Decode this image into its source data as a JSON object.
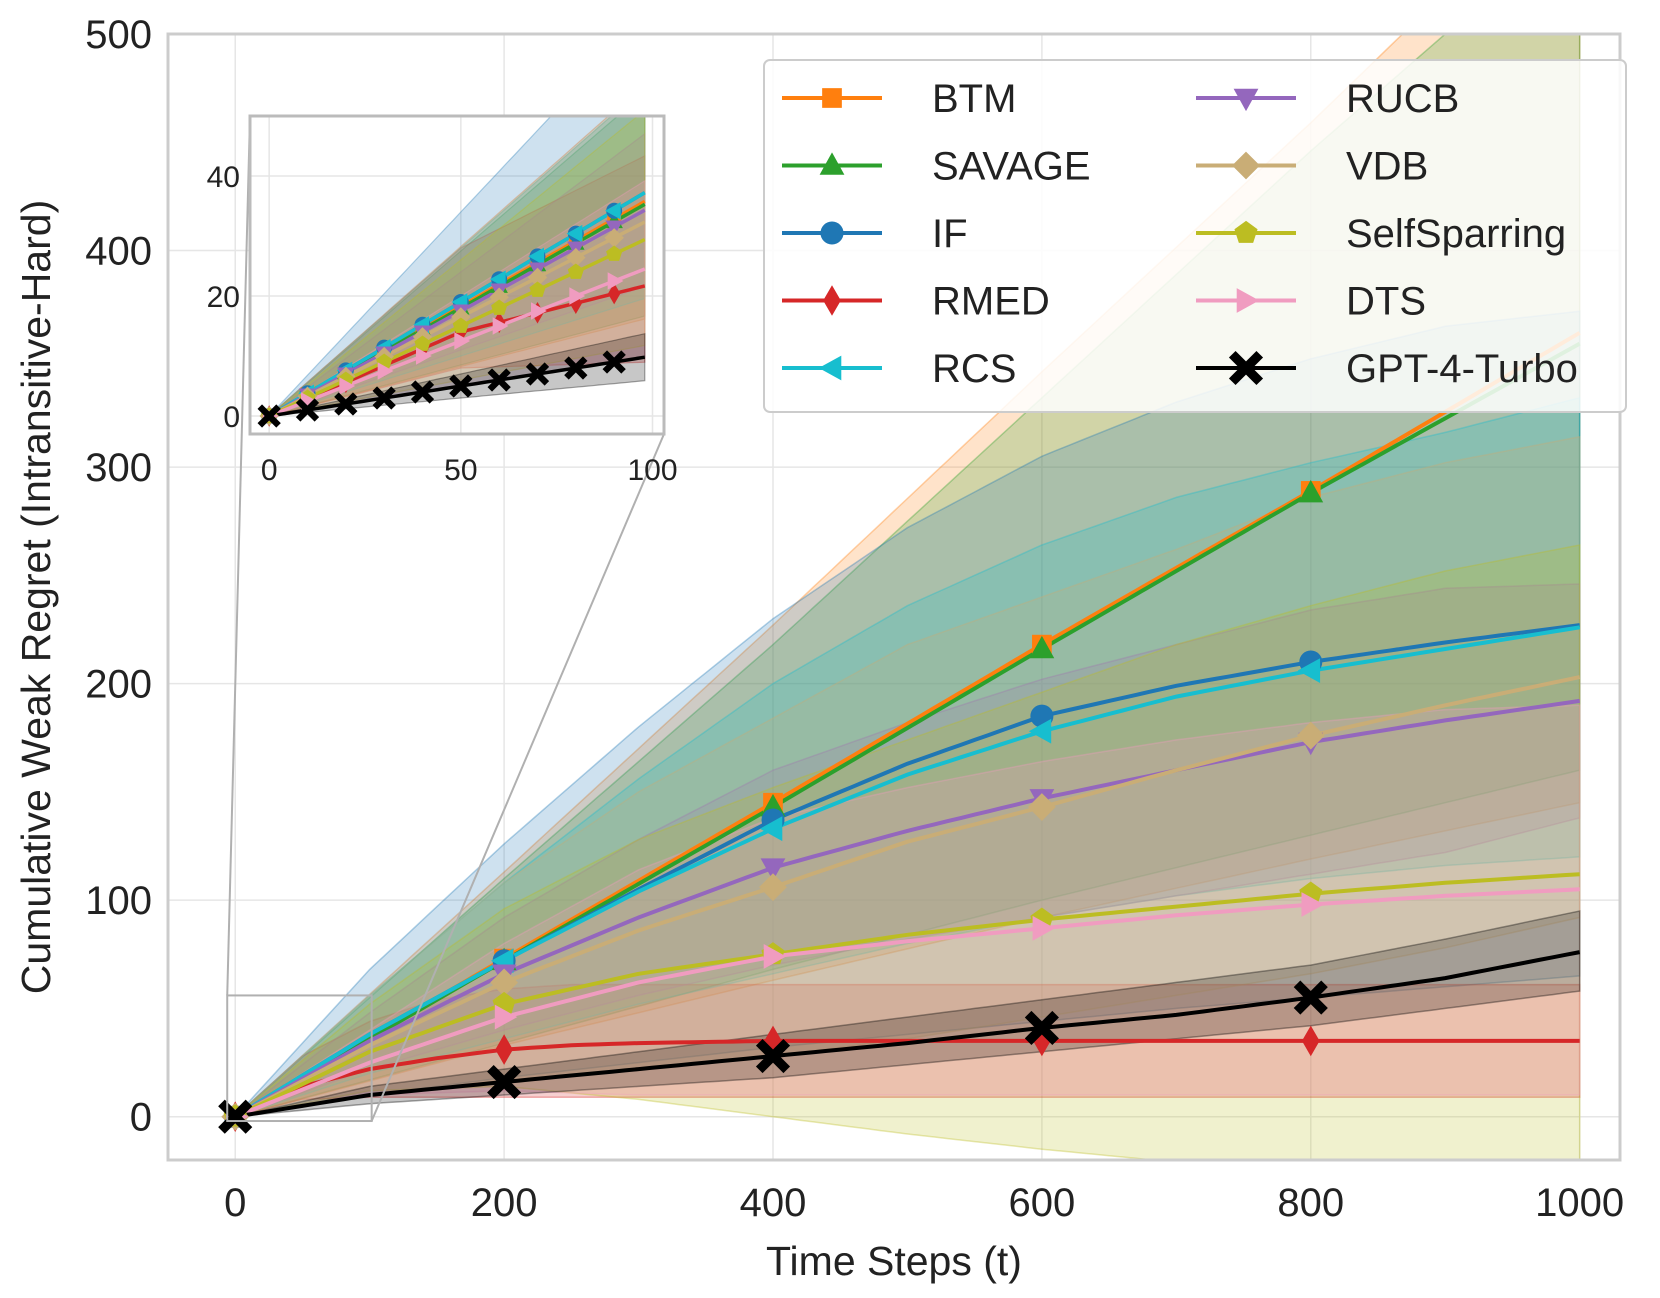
{
  "chart_data": {
    "type": "line",
    "xlabel": "Time Steps (t)",
    "ylabel": "Cumulative Weak Regret (Intransitive-Hard)",
    "xlim": [
      -50,
      1030
    ],
    "ylim": [
      -20,
      500
    ],
    "x_ticks": [
      0,
      200,
      400,
      600,
      800,
      1000
    ],
    "y_ticks": [
      0,
      100,
      200,
      300,
      400,
      500
    ],
    "x_tick_labels": [
      "0",
      "200",
      "400",
      "600",
      "800",
      "1000"
    ],
    "y_tick_labels": [
      "0",
      "100",
      "200",
      "300",
      "400",
      "500"
    ],
    "grid": true,
    "legend_position": "top-right",
    "legend_columns": 2,
    "marker_x": [
      0,
      200,
      400,
      600,
      800
    ],
    "series": [
      {
        "name": "BTM",
        "color": "#ff7f0e",
        "marker": "square",
        "x": [
          0,
          200,
          400,
          600,
          800,
          1000
        ],
        "y": [
          0,
          73,
          145,
          218,
          289,
          362
        ],
        "lower": [
          0,
          33,
          63,
          92,
          119,
          145
        ],
        "upper": [
          0,
          113,
          227,
          344,
          459,
          579
        ]
      },
      {
        "name": "SAVAGE",
        "color": "#2ca02c",
        "marker": "triangle-up",
        "x": [
          0,
          200,
          400,
          600,
          800,
          1000
        ],
        "y": [
          0,
          72,
          143,
          216,
          288,
          357
        ],
        "lower": [
          0,
          34,
          68,
          100,
          130,
          160
        ],
        "upper": [
          0,
          110,
          218,
          332,
          446,
          554
        ]
      },
      {
        "name": "IF",
        "color": "#1f77b4",
        "marker": "circle",
        "x": [
          0,
          100,
          200,
          300,
          400,
          500,
          600,
          700,
          800,
          900,
          1000
        ],
        "y": [
          0,
          38,
          72,
          105,
          137,
          163,
          185,
          199,
          210,
          219,
          227
        ],
        "lower": [
          0,
          10,
          18,
          25,
          32,
          38,
          44,
          50,
          55,
          60,
          65
        ],
        "upper": [
          0,
          68,
          126,
          180,
          230,
          272,
          305,
          330,
          350,
          365,
          372
        ]
      },
      {
        "name": "RMED",
        "color": "#d62728",
        "marker": "diamond",
        "x": [
          0,
          50,
          100,
          150,
          200,
          250,
          300,
          400,
          600,
          800,
          1000
        ],
        "y": [
          0,
          14,
          22,
          27,
          31,
          33,
          34,
          35,
          35,
          35,
          35
        ],
        "lower": [
          0,
          8,
          9,
          9,
          9,
          9,
          9,
          9,
          9,
          9,
          9
        ],
        "upper": [
          0,
          28,
          44,
          54,
          59,
          61,
          61,
          61,
          61,
          61,
          61
        ]
      },
      {
        "name": "RCS",
        "color": "#17becf",
        "marker": "triangle-left",
        "x": [
          0,
          100,
          200,
          300,
          400,
          500,
          600,
          700,
          800,
          900,
          1000
        ],
        "y": [
          0,
          38,
          72,
          104,
          133,
          158,
          178,
          194,
          206,
          216,
          226
        ],
        "lower": [
          0,
          20,
          36,
          52,
          66,
          80,
          92,
          102,
          110,
          116,
          120
        ],
        "upper": [
          0,
          56,
          108,
          156,
          200,
          236,
          264,
          286,
          302,
          316,
          332
        ]
      },
      {
        "name": "RUCB",
        "color": "#9467bd",
        "marker": "triangle-down",
        "x": [
          0,
          100,
          200,
          300,
          400,
          500,
          600,
          700,
          800,
          900,
          1000
        ],
        "y": [
          0,
          35,
          66,
          92,
          115,
          132,
          147,
          160,
          173,
          183,
          192
        ],
        "lower": [
          0,
          22,
          40,
          56,
          70,
          82,
          92,
          102,
          112,
          122,
          138
        ],
        "upper": [
          0,
          48,
          92,
          128,
          160,
          182,
          202,
          218,
          234,
          244,
          246
        ]
      },
      {
        "name": "VDB",
        "color": "#c9ad76",
        "marker": "diamond-thin",
        "x": [
          0,
          100,
          200,
          300,
          400,
          500,
          600,
          700,
          800,
          900,
          1000
        ],
        "y": [
          0,
          33,
          62,
          86,
          106,
          127,
          143,
          160,
          176,
          190,
          203
        ],
        "lower": [
          0,
          10,
          16,
          22,
          28,
          36,
          46,
          56,
          66,
          78,
          92
        ],
        "upper": [
          0,
          56,
          108,
          150,
          184,
          218,
          240,
          262,
          286,
          302,
          314
        ]
      },
      {
        "name": "SelfSparring",
        "color": "#bcbd22",
        "marker": "pentagon",
        "x": [
          0,
          100,
          200,
          300,
          400,
          500,
          600,
          700,
          800,
          900,
          1000
        ],
        "y": [
          0,
          30,
          52,
          66,
          75,
          84,
          91,
          97,
          103,
          108,
          112
        ],
        "lower": [
          0,
          12,
          14,
          8,
          0,
          -8,
          -15,
          -21,
          -26,
          -30,
          -35
        ],
        "upper": [
          0,
          52,
          96,
          128,
          152,
          174,
          196,
          218,
          236,
          252,
          264
        ]
      },
      {
        "name": "DTS",
        "color": "#f09cc0",
        "marker": "triangle-right",
        "x": [
          0,
          100,
          200,
          300,
          400,
          500,
          600,
          700,
          800,
          900,
          1000
        ],
        "y": [
          0,
          25,
          46,
          62,
          74,
          81,
          87,
          93,
          98,
          102,
          105
        ],
        "lower": [
          0,
          10,
          12,
          10,
          10,
          10,
          10,
          10,
          10,
          10,
          10
        ],
        "upper": [
          0,
          40,
          80,
          114,
          138,
          152,
          164,
          174,
          182,
          188,
          190
        ]
      },
      {
        "name": "GPT-4-Turbo",
        "color": "#000000",
        "marker": "x",
        "x": [
          0,
          100,
          200,
          300,
          400,
          500,
          600,
          700,
          800,
          900,
          1000
        ],
        "y": [
          0,
          10,
          16,
          22,
          28,
          34,
          41,
          47,
          55,
          64,
          76
        ],
        "lower": [
          0,
          6,
          10,
          14,
          18,
          24,
          30,
          36,
          42,
          50,
          58
        ],
        "upper": [
          0,
          14,
          22,
          30,
          38,
          46,
          54,
          62,
          70,
          82,
          95
        ]
      }
    ],
    "inset": {
      "xlim": [
        -5,
        103
      ],
      "ylim": [
        -3,
        50
      ],
      "x_ticks": [
        0,
        50,
        100
      ],
      "y_ticks": [
        0,
        20,
        40
      ],
      "x_tick_labels": [
        "0",
        "50",
        "100"
      ],
      "y_tick_labels": [
        "0",
        "20",
        "40"
      ],
      "marker_x": [
        0,
        10,
        20,
        30,
        40,
        50,
        60,
        70,
        80,
        90
      ],
      "source_region": {
        "x": [
          0,
          100
        ],
        "y": [
          -2,
          56
        ]
      }
    }
  }
}
